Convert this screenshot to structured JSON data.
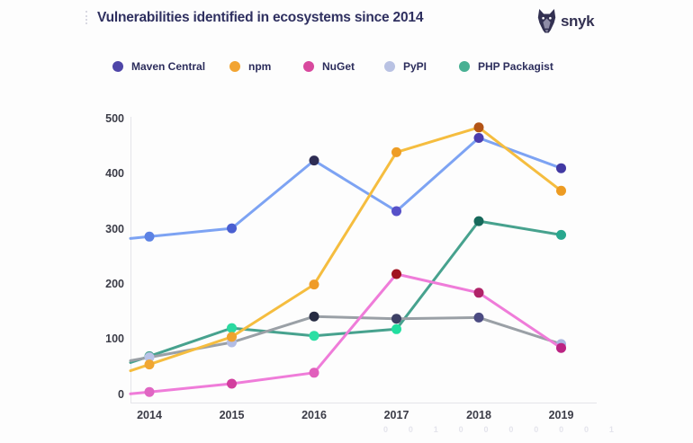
{
  "page": {
    "bg": "#fdfdfd"
  },
  "header": {
    "title": "Vulnerabilities identified in ecosystems since 2014",
    "logo_text": "snyk"
  },
  "footer": {
    "faint_digits": "0 0 1 0 0 0 0 0 0 1"
  },
  "chart_data": {
    "type": "line",
    "title": "Vulnerabilities identified in ecosystems since 2014",
    "xlabel": "",
    "ylabel": "",
    "categories": [
      "2014",
      "2015",
      "2016",
      "2017",
      "2018",
      "2019"
    ],
    "y_ticks": [
      0,
      100,
      200,
      300,
      400,
      500
    ],
    "ylim": [
      0,
      500
    ],
    "grid": false,
    "legend_position": "top",
    "series": [
      {
        "name": "Maven Central",
        "values": [
          287,
          302,
          425,
          333,
          466,
          411
        ],
        "line_color": "#7da3f3",
        "legend_color": "#4f46a8",
        "marker_colors": [
          "#5c82e4",
          "#4a5fd1",
          "#2e2c53",
          "#5751c9",
          "#4b3caf",
          "#4239a3"
        ]
      },
      {
        "name": "npm",
        "values": [
          55,
          105,
          200,
          440,
          485,
          370
        ],
        "line_color": "#f5bd3f",
        "legend_color": "#f2a432",
        "marker_colors": [
          "#f0a631",
          "#efa32d",
          "#ef9b28",
          "#ee9d25",
          "#b35416",
          "#ed9b22"
        ]
      },
      {
        "name": "NuGet",
        "values": [
          5,
          20,
          40,
          219,
          185,
          85
        ],
        "line_color": "#ef7cd9",
        "legend_color": "#d8499e",
        "marker_colors": [
          "#e066c3",
          "#d23e9e",
          "#e15fbc",
          "#a11220",
          "#b02368",
          "#bb2383"
        ]
      },
      {
        "name": "PyPI",
        "values": [
          68,
          95,
          142,
          138,
          140,
          92
        ],
        "line_color": "#9aa0a6",
        "legend_color": "#b9c2e3",
        "marker_colors": [
          "#b9c3e8",
          "#b3bde4",
          "#262b42",
          "#3d4065",
          "#4b4b82",
          "#aab5e0"
        ]
      },
      {
        "name": "PHP Packagist",
        "values": [
          70,
          121,
          107,
          119,
          315,
          290
        ],
        "line_color": "#47a28e",
        "legend_color": "#48b093",
        "marker_colors": [
          "#47a28e",
          "#2bd9a0",
          "#2cdfa4",
          "#21dfa0",
          "#17695b",
          "#28a78e"
        ]
      }
    ]
  }
}
